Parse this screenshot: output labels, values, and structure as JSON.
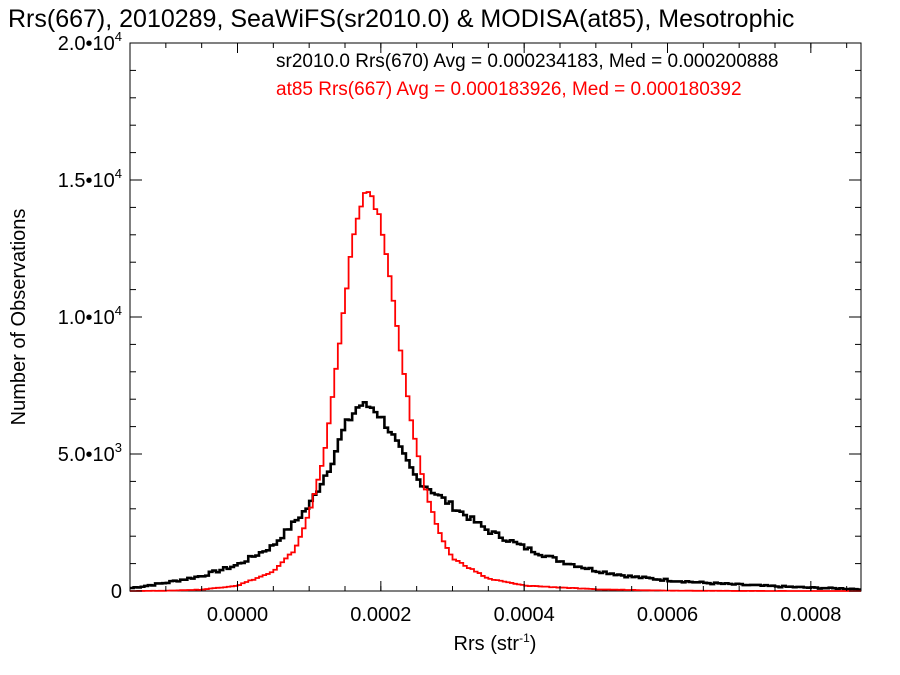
{
  "chart_data": {
    "type": "histogram",
    "title": "Rrs(667), 2010289, SeaWiFS(sr2010.0) & MODISA(at85), Mesotrophic",
    "xlabel": "Rrs (str",
    "xlabel_sup": "-1",
    "xlabel_tail": ")",
    "ylabel": "Number of Observations",
    "xlim": [
      -0.00015,
      0.00087
    ],
    "ylim": [
      0,
      20000
    ],
    "grid": false,
    "x_ticks": [
      {
        "value": 0.0,
        "label": "0.0000"
      },
      {
        "value": 0.0002,
        "label": "0.0002"
      },
      {
        "value": 0.0004,
        "label": "0.0004"
      },
      {
        "value": 0.0006,
        "label": "0.0006"
      },
      {
        "value": 0.0008,
        "label": "0.0008"
      }
    ],
    "y_ticks": [
      {
        "value": 0,
        "mant": "0",
        "exp": ""
      },
      {
        "value": 5000,
        "mant": "5.0•10",
        "exp": "3"
      },
      {
        "value": 10000,
        "mant": "1.0•10",
        "exp": "4"
      },
      {
        "value": 15000,
        "mant": "1.5•10",
        "exp": "4"
      },
      {
        "value": 20000,
        "mant": "2.0•10",
        "exp": "4"
      }
    ],
    "bin_width": 5e-06,
    "series": [
      {
        "name": "sr2010.0",
        "label": "sr2010.0 Rrs(670) Avg = 0.000234183, Med = 0.000200888",
        "color": "#000000",
        "x0": -0.00015,
        "points": [
          [
            -0.00015,
            100
          ],
          [
            -0.0001,
            300
          ],
          [
            -5e-05,
            550
          ],
          [
            0.0,
            950
          ],
          [
            5e-05,
            1650
          ],
          [
            0.0001,
            3100
          ],
          [
            0.00013,
            4600
          ],
          [
            0.00015,
            6000
          ],
          [
            0.00017,
            6800
          ],
          [
            0.00019,
            6700
          ],
          [
            0.00021,
            6000
          ],
          [
            0.00023,
            5000
          ],
          [
            0.00025,
            4100
          ],
          [
            0.00028,
            3500
          ],
          [
            0.0003,
            3100
          ],
          [
            0.00035,
            2200
          ],
          [
            0.0004,
            1600
          ],
          [
            0.00045,
            1100
          ],
          [
            0.0005,
            750
          ],
          [
            0.00055,
            520
          ],
          [
            0.0006,
            400
          ],
          [
            0.00065,
            300
          ],
          [
            0.0007,
            230
          ],
          [
            0.00075,
            170
          ],
          [
            0.0008,
            120
          ],
          [
            0.00087,
            70
          ]
        ]
      },
      {
        "name": "at85",
        "label": "at85 Rrs(667) Avg = 0.000183926, Med = 0.000180392",
        "color": "#ff0000",
        "x0": -0.00015,
        "points": [
          [
            -0.00015,
            0
          ],
          [
            -0.0001,
            10
          ],
          [
            -5e-05,
            50
          ],
          [
            0.0,
            200
          ],
          [
            5e-05,
            700
          ],
          [
            8e-05,
            1500
          ],
          [
            0.0001,
            2800
          ],
          [
            0.00012,
            4800
          ],
          [
            0.00014,
            8500
          ],
          [
            0.00016,
            12700
          ],
          [
            0.00018,
            14800
          ],
          [
            0.0002,
            13500
          ],
          [
            0.00022,
            10200
          ],
          [
            0.00024,
            6600
          ],
          [
            0.00026,
            3900
          ],
          [
            0.00028,
            2200
          ],
          [
            0.0003,
            1200
          ],
          [
            0.00035,
            450
          ],
          [
            0.0004,
            200
          ],
          [
            0.0005,
            60
          ],
          [
            0.0006,
            15
          ],
          [
            0.0007,
            3
          ],
          [
            0.0008,
            0
          ],
          [
            0.00087,
            0
          ]
        ]
      }
    ]
  }
}
